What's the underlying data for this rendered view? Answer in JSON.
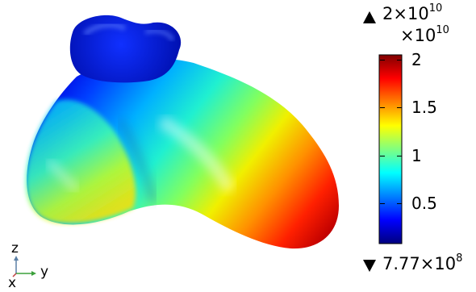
{
  "legend": {
    "max_label": {
      "mantissa": "2×10",
      "exponent": "10"
    },
    "scale_label": {
      "mantissa": "×10",
      "exponent": "10"
    },
    "min_label": "7.77×10",
    "min_exponent": "8",
    "ticks": [
      "2",
      "1.5",
      "1",
      "0.5"
    ],
    "tick_values": [
      2,
      1.5,
      1,
      0.5
    ],
    "range": [
      0.0777,
      2.05
    ],
    "colormap": [
      "#00007f",
      "#0000ff",
      "#0080ff",
      "#00ffff",
      "#80ff80",
      "#ffff00",
      "#ff8000",
      "#ff0000",
      "#7f0000"
    ]
  },
  "axes": {
    "z": "z",
    "y": "y",
    "x": "x"
  },
  "colors": {
    "axis_z": "#5a7fa5",
    "axis_y": "#3ca03c",
    "axis_x": "#c04040"
  }
}
